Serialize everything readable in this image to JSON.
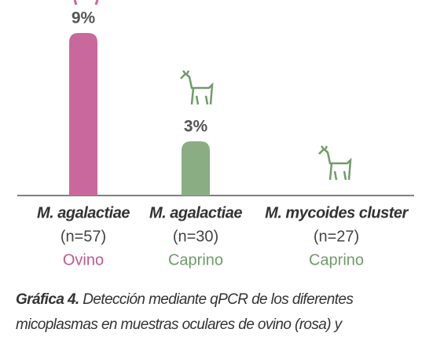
{
  "chart_data": {
    "type": "bar",
    "categories": [
      "M. agalactiae",
      "M. agalactiae",
      "M. mycoides cluster"
    ],
    "sample_sizes": [
      "(n=57)",
      "(n=30)",
      "(n=27)"
    ],
    "species": [
      "Ovino",
      "Caprino",
      "Caprino"
    ],
    "values": [
      9,
      3,
      0
    ],
    "value_labels": [
      "9%",
      "3%",
      null
    ],
    "colors": [
      "#c9689c",
      "#8aad84",
      "#8aad84"
    ],
    "label_colors": [
      "#c0588f",
      "#6f9c68",
      "#6f9c68"
    ],
    "ylim": [
      0,
      9
    ],
    "caption_label": "Gráfica 4.",
    "caption": "Detección mediante qPCR de los diferentes micoplasmas en muestras oculares de ovino (rosa) y"
  }
}
